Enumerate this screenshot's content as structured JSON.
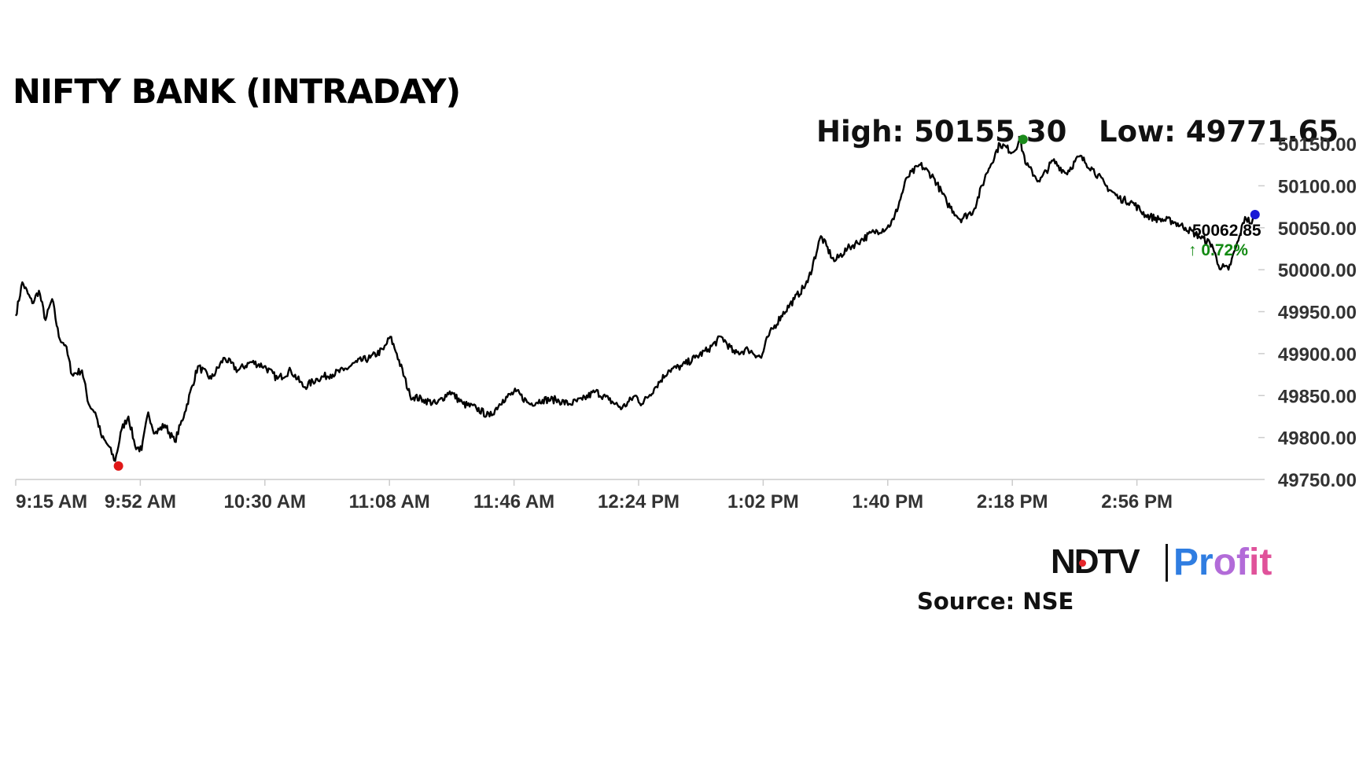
{
  "title": "NIFTY BANK (INTRADAY)",
  "high_label": "High: 50155.30",
  "low_label": "Low: 49771.65",
  "last_value": "50062.85",
  "last_change": "↑ 0.72%",
  "source": "Source: NSE",
  "brand": {
    "ndtv": "NDTV",
    "profit_1": "Pr",
    "profit_2": "of",
    "profit_3": "it"
  },
  "colors": {
    "line": "#000000",
    "high_marker": "#1a8a1a",
    "low_marker": "#e01818",
    "last_marker": "#1a1ad6",
    "change": "#138a13",
    "axis": "#cccccc"
  },
  "chart_data": {
    "type": "line",
    "title": "NIFTY BANK (INTRADAY)",
    "xlabel": "",
    "ylabel": "",
    "x_ticks": [
      "9:15 AM",
      "9:52 AM",
      "10:30 AM",
      "11:08 AM",
      "11:46 AM",
      "12:24 PM",
      "1:02 PM",
      "1:40 PM",
      "2:18 PM",
      "2:56 PM"
    ],
    "y_ticks": [
      "49750.00",
      "49800.00",
      "49850.00",
      "49900.00",
      "49950.00",
      "50000.00",
      "50050.00",
      "50100.00",
      "50150.00"
    ],
    "ylim": [
      49750,
      50150
    ],
    "xlim": [
      "9:15",
      "15:30"
    ],
    "grid": false,
    "series": [
      {
        "x": [
          "9:15",
          "9:17",
          "9:20",
          "9:22",
          "9:24",
          "9:26",
          "9:28",
          "9:30",
          "9:32",
          "9:35",
          "9:37",
          "9:39",
          "9:41",
          "9:43",
          "9:45",
          "9:47",
          "9:49",
          "9:51",
          "9:53",
          "9:55",
          "9:57",
          "10:00",
          "10:03",
          "10:06",
          "10:10",
          "10:14",
          "10:18",
          "10:22",
          "10:26",
          "10:30",
          "10:34",
          "10:38",
          "10:42",
          "10:46",
          "10:50",
          "10:54",
          "10:58",
          "11:02",
          "11:06",
          "11:08",
          "11:10",
          "11:14",
          "11:18",
          "11:22",
          "11:26",
          "11:30",
          "11:34",
          "11:38",
          "11:42",
          "11:46",
          "11:50",
          "11:54",
          "11:58",
          "12:02",
          "12:06",
          "12:10",
          "12:14",
          "12:18",
          "12:22",
          "12:24",
          "12:28",
          "12:32",
          "12:36",
          "12:40",
          "12:44",
          "12:48",
          "12:52",
          "12:56",
          "13:00",
          "13:02",
          "13:06",
          "13:10",
          "13:14",
          "13:18",
          "13:22",
          "13:26",
          "13:30",
          "13:34",
          "13:38",
          "13:40",
          "13:44",
          "13:48",
          "13:52",
          "13:56",
          "14:00",
          "14:04",
          "14:08",
          "14:12",
          "14:16",
          "14:18",
          "14:20",
          "14:24",
          "14:28",
          "14:32",
          "14:36",
          "14:40",
          "14:44",
          "14:48",
          "14:52",
          "14:56",
          "15:00",
          "15:04",
          "15:08",
          "15:12",
          "15:16",
          "15:18",
          "15:21",
          "15:24",
          "15:26",
          "15:28",
          "15:29"
        ],
        "y": [
          49945,
          49985,
          49960,
          49975,
          49940,
          49965,
          49920,
          49910,
          49875,
          49880,
          49840,
          49830,
          49800,
          49790,
          49772,
          49810,
          49825,
          49790,
          49785,
          49830,
          49805,
          49815,
          49795,
          49830,
          49885,
          49870,
          49895,
          49880,
          49890,
          49885,
          49870,
          49880,
          49860,
          49870,
          49875,
          49880,
          49890,
          49895,
          49905,
          49920,
          49900,
          49850,
          49845,
          49840,
          49855,
          49840,
          49835,
          49825,
          49845,
          49855,
          49840,
          49845,
          49845,
          49840,
          49845,
          49855,
          49845,
          49835,
          49850,
          49840,
          49860,
          49880,
          49885,
          49895,
          49905,
          49920,
          49900,
          49905,
          49895,
          49920,
          49945,
          49965,
          49985,
          50040,
          50010,
          50025,
          50035,
          50045,
          50050,
          50060,
          50110,
          50125,
          50110,
          50080,
          50060,
          50070,
          50115,
          50150,
          50140,
          50155,
          50125,
          50105,
          50130,
          50115,
          50135,
          50120,
          50100,
          50085,
          50080,
          50065,
          50060,
          50058,
          50050,
          50040,
          50030,
          50005,
          50000,
          50035,
          50062.85,
          50055,
          50062.85
        ],
        "high": {
          "time": "14:19",
          "value": 50155.3
        },
        "low": {
          "time": "9:46",
          "value": 49771.65
        },
        "last": {
          "time": "15:29",
          "value": 50062.85
        }
      }
    ]
  }
}
